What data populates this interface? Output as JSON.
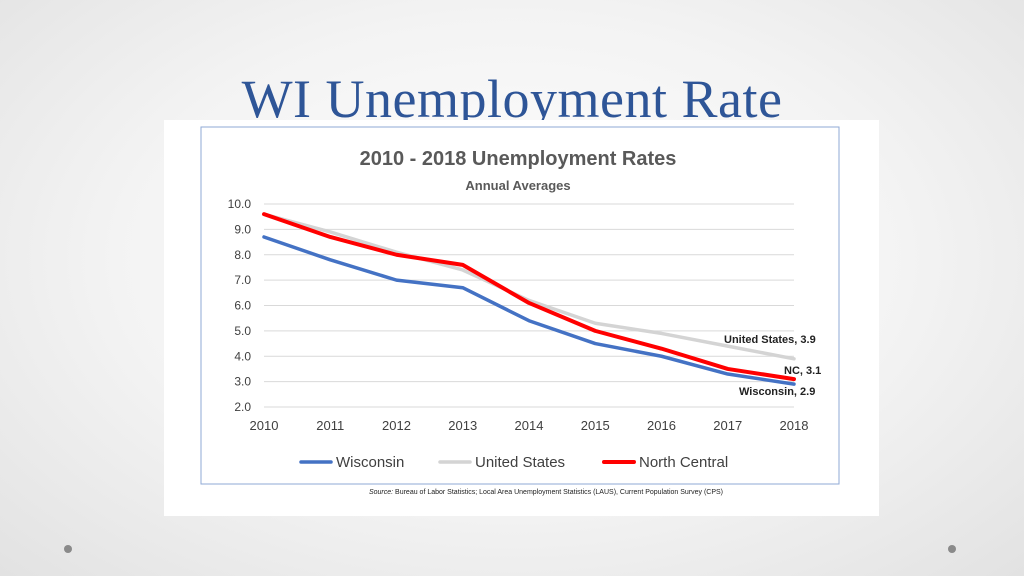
{
  "slide": {
    "title": "WI Unemployment Rate"
  },
  "source": {
    "label": "Source:",
    "text": " Bureau of Labor Statistics; Local Area Unemployment Statistics (LAUS), Current Population Survey (CPS)"
  },
  "chart_data": {
    "type": "line",
    "title": "2010 - 2018 Unemployment Rates",
    "subtitle": "Annual Averages",
    "xlabel": "",
    "ylabel": "",
    "x": [
      "2010",
      "2011",
      "2012",
      "2013",
      "2014",
      "2015",
      "2016",
      "2017",
      "2018"
    ],
    "ylim": [
      2.0,
      10.0
    ],
    "yticks": [
      "2.0",
      "3.0",
      "4.0",
      "5.0",
      "6.0",
      "7.0",
      "8.0",
      "9.0",
      "10.0"
    ],
    "grid": true,
    "legend": "bottom",
    "series": [
      {
        "name": "Wisconsin",
        "color": "#4472C4",
        "values": [
          8.7,
          7.8,
          7.0,
          6.7,
          5.4,
          4.5,
          4.0,
          3.3,
          2.9
        ],
        "end_label": "Wisconsin, 2.9"
      },
      {
        "name": "United States",
        "color": "#D4D4D4",
        "values": [
          9.6,
          8.9,
          8.1,
          7.4,
          6.2,
          5.3,
          4.9,
          4.4,
          3.9
        ],
        "end_label": "United States, 3.9"
      },
      {
        "name": "North Central",
        "color": "#FF0000",
        "values": [
          9.6,
          8.7,
          8.0,
          7.6,
          6.1,
          5.0,
          4.3,
          3.5,
          3.1
        ],
        "end_label": "NC, 3.1"
      }
    ]
  }
}
